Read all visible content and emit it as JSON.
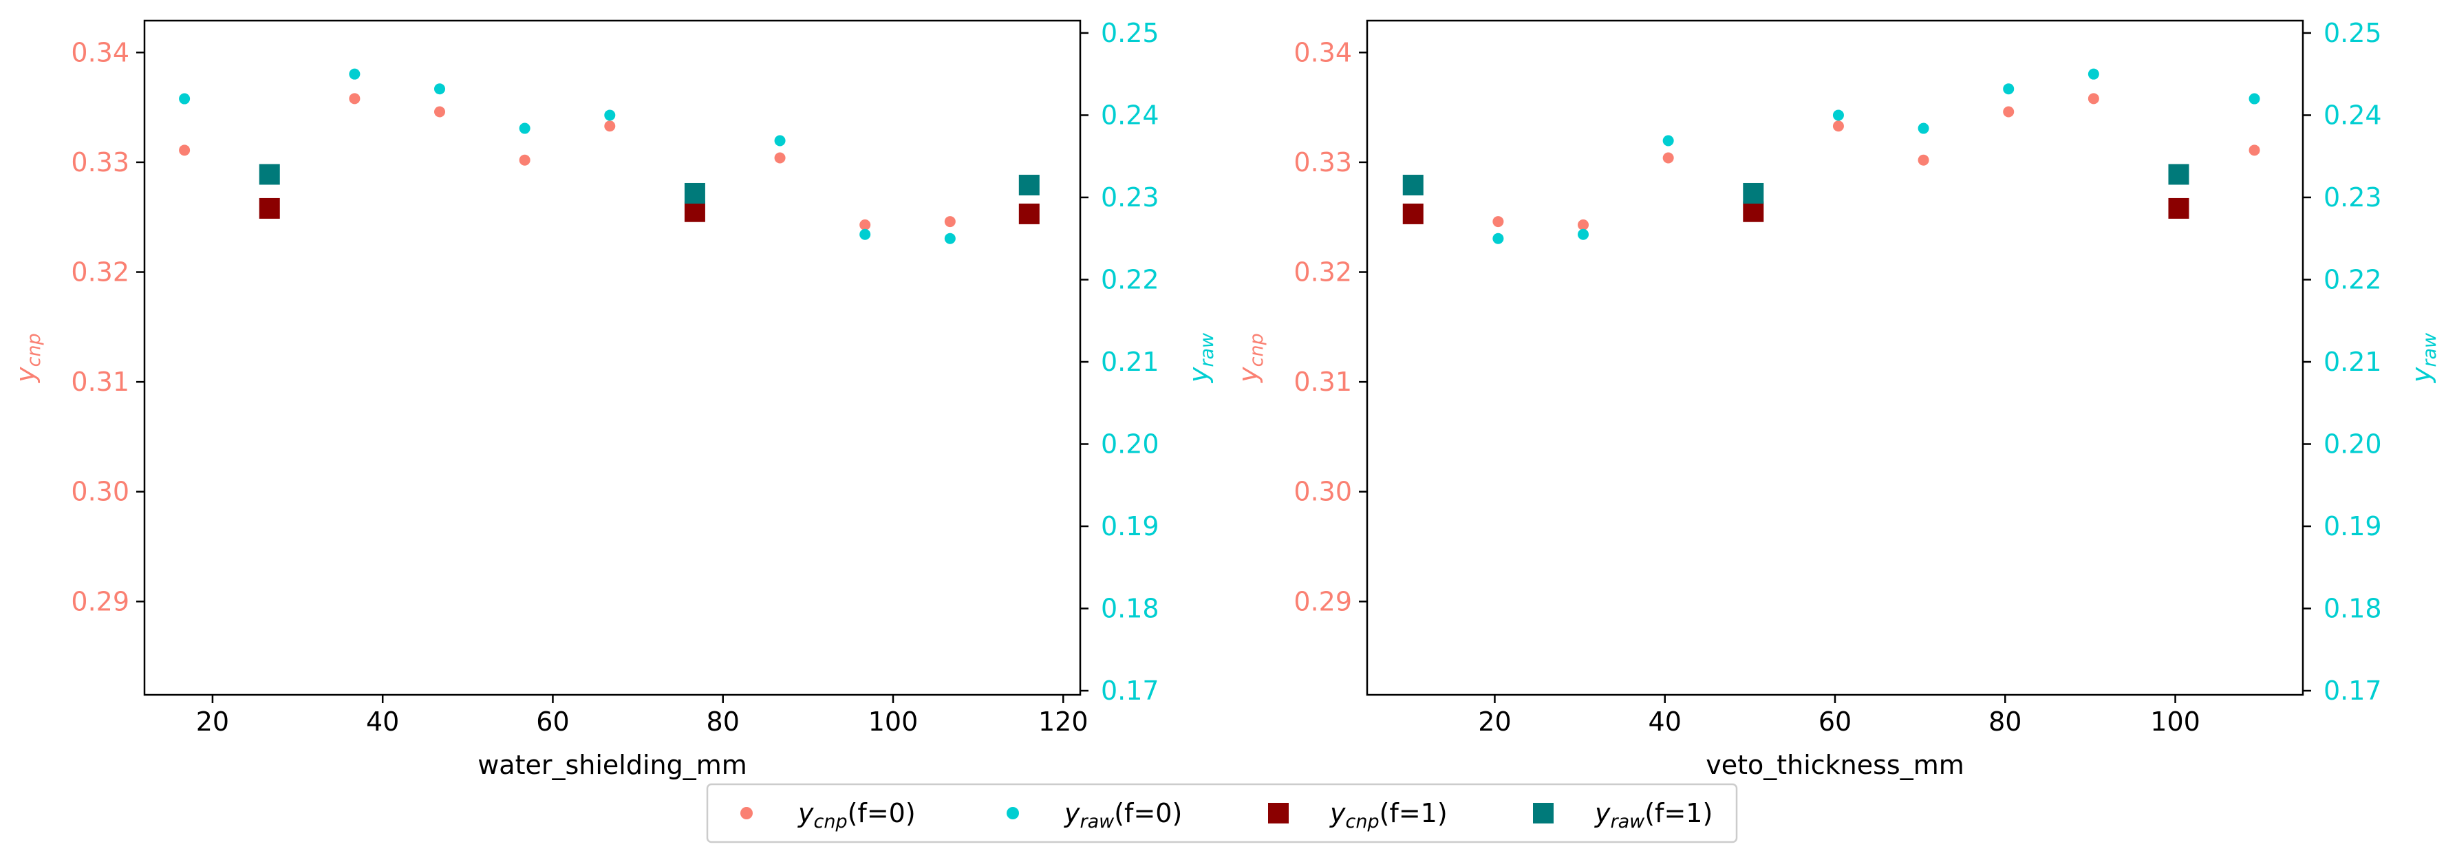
{
  "colors": {
    "cnp_f0": "#fa8072",
    "raw_f0": "#00ced1",
    "cnp_f1": "#8b0000",
    "raw_f1": "#007a7a",
    "left_axis": "#fa8072",
    "right_axis": "#00ced1"
  },
  "chart_data": [
    {
      "type": "scatter",
      "xlabel": "water_shielding_mm",
      "ylabel_left": "y_cnp",
      "ylabel_right": "y_raw",
      "xlim": [
        12,
        122
      ],
      "ylim_left": [
        0.2815,
        0.3429
      ],
      "ylim_right": [
        0.1695,
        0.2515
      ],
      "xticks": [
        20,
        40,
        60,
        80,
        100,
        120
      ],
      "yticks_left": [
        0.29,
        0.3,
        0.31,
        0.32,
        0.33,
        0.34
      ],
      "yticks_right": [
        0.17,
        0.18,
        0.19,
        0.2,
        0.21,
        0.22,
        0.23,
        0.24,
        0.25
      ],
      "series": [
        {
          "key": "cnp_f0",
          "axis": "left",
          "marker": "circle",
          "x": [
            16.7,
            36.7,
            46.7,
            56.7,
            66.7,
            86.7,
            96.7,
            106.7
          ],
          "y": [
            0.3311,
            0.3358,
            0.3346,
            0.3302,
            0.3333,
            0.3304,
            0.3243,
            0.3246
          ]
        },
        {
          "key": "raw_f0",
          "axis": "right",
          "marker": "circle",
          "x": [
            16.7,
            36.7,
            46.7,
            56.7,
            66.7,
            86.7,
            96.7,
            106.7
          ],
          "y": [
            0.242,
            0.245,
            0.2432,
            0.2384,
            0.24,
            0.2369,
            0.2255,
            0.225
          ]
        },
        {
          "key": "cnp_f1",
          "axis": "left",
          "marker": "square",
          "x": [
            26.7,
            76.7,
            116.0
          ],
          "y": [
            0.3258,
            0.3255,
            0.3253
          ]
        },
        {
          "key": "raw_f1",
          "axis": "right",
          "marker": "square",
          "x": [
            26.7,
            76.7,
            116.0
          ],
          "y": [
            0.2328,
            0.2305,
            0.2315
          ]
        }
      ]
    },
    {
      "type": "scatter",
      "xlabel": "veto_thickness_mm",
      "ylabel_left": "y_cnp",
      "ylabel_right": "y_raw",
      "xlim": [
        5,
        115
      ],
      "ylim_left": [
        0.2815,
        0.3429
      ],
      "ylim_right": [
        0.1695,
        0.2515
      ],
      "xticks": [
        20,
        40,
        60,
        80,
        100
      ],
      "yticks_left": [
        0.29,
        0.3,
        0.31,
        0.32,
        0.33,
        0.34
      ],
      "yticks_right": [
        0.17,
        0.18,
        0.19,
        0.2,
        0.21,
        0.22,
        0.23,
        0.24,
        0.25
      ],
      "series": [
        {
          "key": "cnp_f0",
          "axis": "left",
          "marker": "circle",
          "x": [
            20.4,
            30.4,
            40.4,
            60.4,
            70.4,
            80.4,
            90.4,
            109.3
          ],
          "y": [
            0.3246,
            0.3243,
            0.3304,
            0.3333,
            0.3302,
            0.3346,
            0.3358,
            0.3311
          ]
        },
        {
          "key": "raw_f0",
          "axis": "right",
          "marker": "circle",
          "x": [
            20.4,
            30.4,
            40.4,
            60.4,
            70.4,
            80.4,
            90.4,
            109.3
          ],
          "y": [
            0.225,
            0.2255,
            0.2369,
            0.24,
            0.2384,
            0.2432,
            0.245,
            0.242
          ]
        },
        {
          "key": "cnp_f1",
          "axis": "left",
          "marker": "square",
          "x": [
            10.4,
            50.4,
            100.4
          ],
          "y": [
            0.3253,
            0.3255,
            0.3258
          ]
        },
        {
          "key": "raw_f1",
          "axis": "right",
          "marker": "square",
          "x": [
            10.4,
            50.4,
            100.4
          ],
          "y": [
            0.2315,
            0.2305,
            0.2328
          ]
        }
      ]
    }
  ],
  "legend": {
    "placement": "bottom-center",
    "entries": [
      {
        "key": "cnp_f0",
        "var": "y",
        "sub": "cnp",
        "suffix": "(f=0)",
        "marker": "circle"
      },
      {
        "key": "raw_f0",
        "var": "y",
        "sub": "raw",
        "suffix": "(f=0)",
        "marker": "circle"
      },
      {
        "key": "cnp_f1",
        "var": "y",
        "sub": "cnp",
        "suffix": "(f=1)",
        "marker": "square"
      },
      {
        "key": "raw_f1",
        "var": "y",
        "sub": "raw",
        "suffix": "(f=1)",
        "marker": "square"
      }
    ]
  },
  "axis_label_parts": {
    "left": {
      "var": "y",
      "sub": "cnp"
    },
    "right": {
      "var": "y",
      "sub": "raw"
    }
  }
}
